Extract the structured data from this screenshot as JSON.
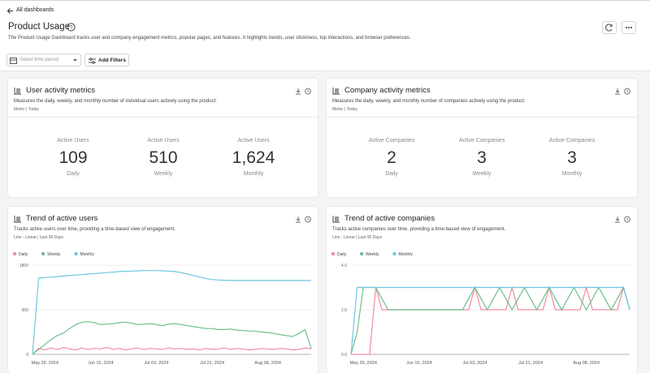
{
  "header": {
    "back": "All dashboards",
    "title": "Product Usage",
    "description": "The Product Usage Dashboard tracks user and company engagement metrics, popular pages, and features. It highlights trends, user stickiness, top interactions, and browser preferences."
  },
  "toolbar": {
    "time_period": "Select time period",
    "filters": "Add Filters"
  },
  "cards": [
    {
      "title": "User activity metrics",
      "description": "Measures the daily, weekly, and monthly number of individual users actively using the product.",
      "meta": "Metric | Today",
      "metrics": [
        {
          "label": "Active Users",
          "value": "109",
          "period": "Daily"
        },
        {
          "label": "Active Users",
          "value": "510",
          "period": "Weekly"
        },
        {
          "label": "Active Users",
          "value": "1,624",
          "period": "Monthly"
        }
      ]
    },
    {
      "title": "Company activity metrics",
      "description": "Measures the daily, weekly, and monthly number of companies actively using the product.",
      "meta": "Metric | Today",
      "metrics": [
        {
          "label": "Active Companies",
          "value": "2",
          "period": "Daily"
        },
        {
          "label": "Active Companies",
          "value": "3",
          "period": "Weekly"
        },
        {
          "label": "Active Companies",
          "value": "3",
          "period": "Monthly"
        }
      ]
    }
  ],
  "chart_data": [
    {
      "type": "line",
      "title": "Trend of active users",
      "subtitle": "Tracks active users over time, providing a time-based view of engagement.",
      "caption": "Line - Linear | Last 90 Days",
      "categories": [
        null,
        null,
        "May 29, 2024",
        null,
        null,
        null,
        null,
        null,
        null,
        null,
        null,
        "Jun 15, 2024",
        null,
        null,
        null,
        null,
        null,
        null,
        null,
        null,
        "Jul 03, 2024",
        null,
        null,
        null,
        null,
        null,
        null,
        null,
        null,
        "Jul 21, 2024",
        null,
        null,
        null,
        null,
        null,
        null,
        null,
        null,
        "Aug 08, 2024",
        null,
        null,
        null,
        null,
        null,
        null,
        null
      ],
      "ylim": [
        0,
        1800
      ],
      "yticks": [
        0,
        900,
        1800
      ],
      "grid": true,
      "series": [
        {
          "name": "Daily",
          "color": "#f08ca3",
          "values": [
            0,
            120,
            90,
            130,
            100,
            140,
            110,
            90,
            130,
            100,
            120,
            110,
            140,
            100,
            120,
            90,
            110,
            130,
            100,
            120,
            110,
            100,
            130,
            110,
            120,
            100,
            110,
            90,
            120,
            100,
            110,
            130,
            100,
            120,
            110,
            90,
            100,
            120,
            110,
            100,
            120,
            110,
            90,
            100,
            130,
            110
          ]
        },
        {
          "name": "Weekly",
          "color": "#6cc08b",
          "values": [
            0,
            100,
            200,
            300,
            380,
            430,
            520,
            600,
            650,
            660,
            640,
            600,
            610,
            620,
            640,
            650,
            630,
            600,
            610,
            620,
            600,
            580,
            610,
            620,
            600,
            580,
            560,
            540,
            520,
            520,
            500,
            500,
            510,
            490,
            480,
            470,
            470,
            450,
            440,
            420,
            400,
            380,
            360,
            420,
            500,
            120
          ]
        },
        {
          "name": "Monthly",
          "color": "#6ec6e0",
          "values": [
            0,
            1540,
            1550,
            1560,
            1570,
            1580,
            1590,
            1600,
            1610,
            1620,
            1630,
            1640,
            1650,
            1660,
            1670,
            1675,
            1680,
            1685,
            1690,
            1690,
            1690,
            1685,
            1680,
            1670,
            1650,
            1620,
            1590,
            1560,
            1530,
            1510,
            1500,
            1495,
            1490,
            1490,
            1490,
            1490,
            1490,
            1490,
            1490,
            1490,
            1490,
            1490,
            1490,
            1490,
            1490,
            1490
          ]
        }
      ]
    },
    {
      "type": "line",
      "title": "Trend of active companies",
      "subtitle": "Tracks active companies over time, providing a time-based view of engagement.",
      "caption": "Line - Linear | Last 90 Days",
      "categories": [
        null,
        null,
        "May 29, 2024",
        null,
        null,
        null,
        null,
        null,
        null,
        null,
        null,
        "Jun 15, 2024",
        null,
        null,
        null,
        null,
        null,
        null,
        null,
        null,
        "Jul 03, 2024",
        null,
        null,
        null,
        null,
        null,
        null,
        null,
        null,
        "Jul 21, 2024",
        null,
        null,
        null,
        null,
        null,
        null,
        null,
        null,
        "Aug 08, 2024",
        null,
        null,
        null,
        null,
        null,
        null,
        null
      ],
      "ylim": [
        0,
        4
      ],
      "yticks": [
        {
          "value": 0,
          "label": "0.0"
        },
        {
          "value": 2,
          "label": "2.0"
        },
        {
          "value": 4,
          "label": "4.0"
        }
      ],
      "grid": true,
      "series": [
        {
          "name": "Daily",
          "color": "#f08ca3",
          "values": [
            0,
            0,
            0,
            0,
            3,
            2,
            2,
            2,
            2,
            2,
            2,
            2,
            2,
            2,
            2,
            2,
            2,
            2,
            2,
            2,
            3,
            2,
            2,
            2,
            2,
            2,
            3,
            2,
            2,
            2,
            2,
            2,
            3,
            2,
            2,
            2,
            2,
            2,
            3,
            2,
            2,
            2,
            2,
            2,
            3,
            2
          ]
        },
        {
          "name": "Weekly",
          "color": "#6cc08b",
          "values": [
            0,
            1,
            3,
            3,
            3,
            2.5,
            2,
            2,
            2,
            2,
            2,
            2,
            2,
            2,
            2,
            2,
            2,
            2,
            2,
            2.5,
            3,
            2.5,
            2,
            2.5,
            3,
            2.5,
            2,
            2.5,
            3,
            2.5,
            2,
            2.5,
            3,
            2.5,
            2,
            2.5,
            3,
            2.5,
            2,
            2.5,
            3,
            2.5,
            2,
            2.5,
            3,
            2
          ]
        },
        {
          "name": "Monthly",
          "color": "#6ec6e0",
          "values": [
            0,
            3,
            3,
            3,
            3,
            3,
            3,
            3,
            3,
            3,
            3,
            3,
            3,
            3,
            3,
            3,
            3,
            3,
            3,
            3,
            3,
            3,
            3,
            3,
            3,
            3,
            3,
            3,
            3,
            3,
            3,
            3,
            3,
            3,
            3,
            3,
            3,
            3,
            3,
            3,
            3,
            3,
            3,
            3,
            3,
            2
          ]
        }
      ]
    }
  ]
}
